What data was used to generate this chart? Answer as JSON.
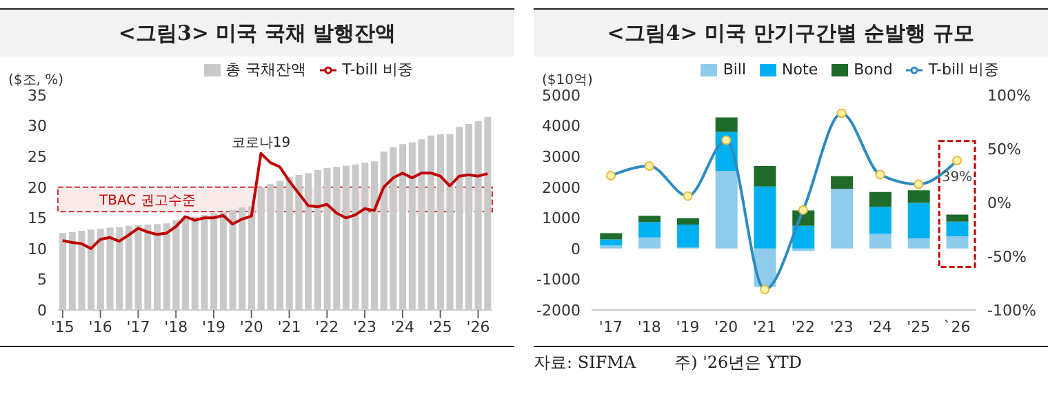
{
  "chart_data": [
    {
      "type": "bar",
      "title": "<그림3> 미국 국채 발행잔액",
      "ylabel": "($조, %)",
      "categories": [
        "'15",
        null,
        null,
        null,
        "'16",
        null,
        null,
        null,
        "'17",
        null,
        null,
        null,
        "'18",
        null,
        null,
        null,
        "'19",
        null,
        null,
        null,
        "'20",
        null,
        null,
        null,
        "'21",
        null,
        null,
        null,
        "'22",
        null,
        null,
        null,
        "'23",
        null,
        null,
        null,
        "'24",
        null,
        null,
        null,
        "'25",
        null,
        null,
        null,
        "'26",
        null
      ],
      "series": [
        {
          "name": "총 국채잔액",
          "color": "#c9c9c9",
          "values": [
            12.5,
            12.7,
            12.9,
            13.1,
            13.2,
            13.4,
            13.5,
            13.7,
            13.8,
            13.9,
            14,
            14.1,
            14.6,
            14.9,
            15.2,
            15.5,
            15.8,
            15.9,
            16.3,
            16.7,
            16.9,
            20,
            20.5,
            21,
            21.7,
            22,
            22.3,
            22.8,
            23.1,
            23.3,
            23.5,
            23.7,
            24,
            24.2,
            25.8,
            26.5,
            27,
            27.3,
            27.8,
            28.4,
            28.6,
            28.6,
            29.8,
            30.3,
            30.8,
            31.4
          ]
        },
        {
          "name": "T-bill 비중",
          "type": "line",
          "color": "#c00000",
          "values": [
            11.3,
            11,
            10.8,
            10,
            11.5,
            11.8,
            11.2,
            12.2,
            13.3,
            12.7,
            12.3,
            12.5,
            13.6,
            15.2,
            14.6,
            15,
            15,
            15.4,
            14,
            14.8,
            15.3,
            25.5,
            24,
            23.3,
            21,
            19,
            17,
            16.8,
            17.2,
            15.8,
            15,
            15.5,
            16.5,
            16.2,
            20,
            21.5,
            22.3,
            21.5,
            22.3,
            22.3,
            21.8,
            20.2,
            21.8,
            22,
            21.8,
            22.2
          ]
        }
      ],
      "ylim": [
        0,
        35
      ],
      "yticks": [
        0,
        5,
        10,
        15,
        20,
        25,
        30,
        35
      ],
      "grid": false,
      "legend": "top",
      "marker": "none",
      "bands": [
        {
          "axis": "y",
          "from": 16,
          "to": 20,
          "label": "TBAC 권고수준",
          "color": "#c00000"
        }
      ],
      "annotations": [
        "코로나19"
      ]
    },
    {
      "type": "bar",
      "title": "<그림4> 미국 만기구간별 순발행 규모",
      "ylabel": "($10억)",
      "stacked": true,
      "categories": [
        "'17",
        "'18",
        "'19",
        "'20",
        "'21",
        "'22",
        "'23",
        "'24",
        "'25",
        "`26"
      ],
      "series": [
        {
          "name": "Bill",
          "color": "#8fcbea",
          "values": [
            100,
            360,
            30,
            2530,
            -1250,
            -80,
            1950,
            480,
            330,
            400
          ]
        },
        {
          "name": "Note",
          "color": "#00b0f0",
          "values": [
            200,
            500,
            750,
            1270,
            2020,
            740,
            0,
            880,
            1160,
            480
          ]
        },
        {
          "name": "Bond",
          "color": "#1e6b2a",
          "values": [
            200,
            210,
            210,
            470,
            670,
            500,
            410,
            480,
            410,
            230
          ]
        },
        {
          "name": "T-bill 비중",
          "type": "line",
          "axis": "y2",
          "color": "#2e8bc0",
          "marker": "circle",
          "values": [
            25,
            34,
            6,
            58,
            -81,
            -7,
            83,
            26,
            17,
            39
          ],
          "value_labels": [
            null,
            null,
            null,
            null,
            null,
            null,
            null,
            null,
            null,
            "39%"
          ]
        }
      ],
      "ylim": [
        -2000,
        5000
      ],
      "yticks": [
        -2000,
        -1000,
        0,
        1000,
        2000,
        3000,
        4000,
        5000
      ],
      "y2lim": [
        -100,
        100
      ],
      "y2ticks": [
        {
          "value": -100,
          "label": "-100%"
        },
        {
          "value": -50,
          "label": "-50%"
        },
        {
          "value": 0,
          "label": "0%"
        },
        {
          "value": 50,
          "label": "50%"
        },
        {
          "value": 100,
          "label": "100%"
        }
      ],
      "grid": false,
      "legend": "top",
      "annotations": [
        "자료: SIFMA",
        "주) '26년은 YTD"
      ]
    }
  ]
}
